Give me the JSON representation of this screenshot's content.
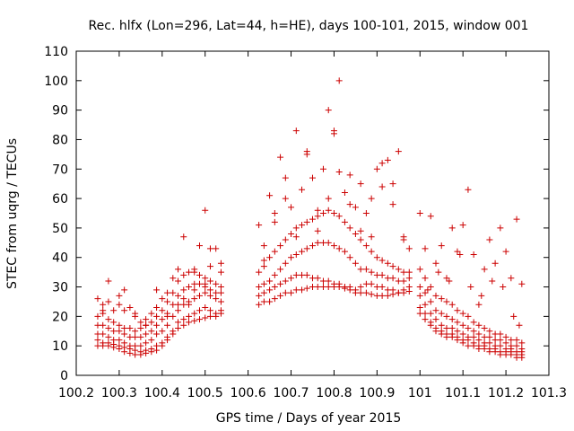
{
  "chart_data": {
    "type": "scatter",
    "title": "Rec. hlfx (Lon=296, Lat=44, h=HE), days 100-101, 2015, window 001",
    "xlabel": "GPS time / Days of year 2015",
    "ylabel": "STEC from uqrg / TECUs",
    "xlim": [
      100.2,
      101.3
    ],
    "ylim": [
      0,
      110
    ],
    "xticks": [
      "100.2",
      "100.3",
      "100.4",
      "100.5",
      "100.6",
      "100.7",
      "100.8",
      "100.9",
      "101",
      "101.1",
      "101.2",
      "101.3"
    ],
    "yticks": [
      "0",
      "10",
      "20",
      "30",
      "40",
      "50",
      "60",
      "70",
      "80",
      "90",
      "100",
      "110"
    ],
    "marker": "plus",
    "color": "#cc0000",
    "grid": false,
    "legend": "none",
    "series": [
      {
        "x": [
          100.25,
          100.262,
          100.275,
          100.287,
          100.3,
          100.312,
          100.325,
          100.337,
          100.35,
          100.362,
          100.375,
          100.387,
          100.4,
          100.412,
          100.425,
          100.437,
          100.45,
          100.462,
          100.475,
          100.487,
          100.5,
          100.512,
          100.525,
          100.537
        ],
        "y": [
          10,
          10,
          10,
          9.5,
          9,
          8,
          7.5,
          7,
          7,
          7.5,
          8,
          8.5,
          10,
          12,
          14,
          16,
          17,
          18,
          18.5,
          19,
          19.5,
          20,
          20,
          21
        ]
      },
      {
        "x": [
          100.25,
          100.262,
          100.275,
          100.287,
          100.3,
          100.312,
          100.325,
          100.337,
          100.35,
          100.362,
          100.375,
          100.387,
          100.4,
          100.412,
          100.425,
          100.437,
          100.45,
          100.462,
          100.475,
          100.487,
          100.5,
          100.512,
          100.525,
          100.537
        ],
        "y": [
          12,
          11,
          11,
          10.5,
          10,
          9.5,
          9,
          8.5,
          8,
          8.5,
          9,
          10,
          11,
          13,
          15,
          18,
          19,
          20,
          21,
          22,
          23,
          22,
          21,
          22
        ]
      },
      {
        "x": [
          100.25,
          100.262,
          100.275,
          100.287,
          100.3,
          100.312,
          100.325,
          100.337,
          100.35,
          100.362,
          100.375,
          100.387,
          100.4,
          100.412,
          100.425,
          100.437,
          100.45,
          100.462,
          100.475,
          100.487,
          100.5,
          100.512,
          100.525,
          100.537
        ],
        "y": [
          14,
          14,
          13,
          12,
          12,
          11,
          10,
          10,
          10,
          11,
          12,
          14,
          15,
          17,
          20,
          22,
          24,
          25,
          26,
          27,
          28,
          27,
          26,
          25
        ]
      },
      {
        "x": [
          100.25,
          100.262,
          100.275,
          100.287,
          100.3,
          100.312,
          100.325,
          100.337,
          100.35,
          100.362,
          100.375,
          100.387,
          100.4,
          100.412,
          100.425,
          100.437,
          100.45,
          100.462,
          100.475,
          100.487,
          100.5,
          100.512,
          100.525,
          100.537
        ],
        "y": [
          17,
          17,
          16,
          15,
          15,
          14,
          13,
          13,
          13,
          14,
          15,
          17,
          19,
          21,
          24,
          27,
          29,
          30,
          31,
          31,
          30,
          29,
          28,
          28
        ]
      },
      {
        "x": [
          100.25,
          100.262,
          100.275,
          100.287,
          100.3,
          100.312,
          100.325,
          100.337,
          100.35,
          100.362,
          100.375,
          100.387,
          100.4,
          100.412,
          100.425,
          100.437,
          100.45,
          100.462,
          100.475,
          100.487,
          100.5,
          100.512,
          100.525,
          100.537
        ],
        "y": [
          20,
          21,
          19,
          18,
          17,
          16,
          16,
          15,
          16,
          17,
          18,
          20,
          22,
          25,
          28,
          32,
          34,
          35,
          35,
          34,
          33,
          32,
          31,
          30
        ]
      },
      {
        "x": [
          100.25,
          100.262,
          100.275,
          100.287,
          100.3,
          100.312,
          100.325,
          100.337,
          100.35,
          100.362,
          100.375,
          100.387,
          100.4,
          100.412,
          100.425,
          100.437,
          100.45,
          100.462,
          100.475,
          100.487,
          100.5,
          100.512,
          100.525,
          100.537
        ],
        "y": [
          26,
          24,
          25,
          22,
          27,
          29,
          23,
          20,
          18,
          19,
          21,
          29,
          26,
          28,
          33,
          36,
          26,
          24,
          29,
          44,
          56,
          43,
          43,
          38
        ]
      },
      {
        "x": [
          100.262,
          100.275,
          100.3,
          100.312,
          100.337,
          100.362,
          100.387,
          100.412,
          100.437,
          100.45,
          100.475,
          100.5,
          100.512,
          100.537
        ],
        "y": [
          22,
          32,
          24,
          22,
          21,
          17,
          23,
          20,
          24,
          47,
          36,
          31,
          37,
          35
        ]
      },
      {
        "x": [
          100.625,
          100.637,
          100.65,
          100.662,
          100.675,
          100.687,
          100.7,
          100.712,
          100.725,
          100.737,
          100.75,
          100.762,
          100.775,
          100.787,
          100.8,
          100.812,
          100.825,
          100.837,
          100.85,
          100.862,
          100.875,
          100.887,
          100.9,
          100.912,
          100.925,
          100.937,
          100.95,
          100.962,
          100.975
        ],
        "y": [
          24,
          25,
          25,
          26,
          27,
          28,
          28,
          29,
          29,
          29.5,
          30,
          30,
          30,
          30,
          30,
          30,
          29.5,
          29,
          28,
          28,
          28,
          27.5,
          27,
          27,
          27,
          27.5,
          28,
          28,
          28.5
        ]
      },
      {
        "x": [
          100.625,
          100.637,
          100.65,
          100.662,
          100.675,
          100.687,
          100.7,
          100.712,
          100.725,
          100.737,
          100.75,
          100.762,
          100.775,
          100.787,
          100.8,
          100.812,
          100.825,
          100.837,
          100.85,
          100.862,
          100.875,
          100.887,
          100.9,
          100.912,
          100.925,
          100.937,
          100.95,
          100.962,
          100.975
        ],
        "y": [
          27,
          28,
          29,
          30,
          31,
          32,
          33,
          34,
          34,
          34,
          33,
          33,
          32,
          32,
          31,
          31,
          30,
          30,
          29,
          30,
          31,
          31,
          30,
          30,
          29,
          29,
          28,
          29,
          30
        ]
      },
      {
        "x": [
          100.625,
          100.637,
          100.65,
          100.662,
          100.675,
          100.687,
          100.7,
          100.712,
          100.725,
          100.737,
          100.75,
          100.762,
          100.775,
          100.787,
          100.8,
          100.812,
          100.825,
          100.837,
          100.85,
          100.862,
          100.875,
          100.887,
          100.9,
          100.912,
          100.925,
          100.937,
          100.95,
          100.962,
          100.975
        ],
        "y": [
          30,
          31,
          32,
          34,
          36,
          38,
          40,
          41,
          42,
          43,
          44,
          45,
          45,
          45,
          44,
          43,
          42,
          40,
          38,
          36,
          36,
          35,
          34,
          34,
          33,
          33,
          32,
          32,
          33
        ]
      },
      {
        "x": [
          100.625,
          100.637,
          100.65,
          100.662,
          100.675,
          100.687,
          100.7,
          100.712,
          100.725,
          100.737,
          100.75,
          100.762,
          100.775,
          100.787,
          100.8,
          100.812,
          100.825,
          100.837,
          100.85,
          100.862,
          100.875,
          100.887,
          100.9,
          100.912,
          100.925,
          100.937,
          100.95,
          100.962,
          100.975
        ],
        "y": [
          35,
          37,
          40,
          42,
          44,
          46,
          48,
          50,
          51,
          52,
          53,
          54,
          55,
          56,
          55,
          54,
          52,
          50,
          48,
          46,
          44,
          42,
          40,
          39,
          38,
          37,
          36,
          35,
          35
        ]
      },
      {
        "x": [
          100.625,
          100.637,
          100.65,
          100.662,
          100.675,
          100.687,
          100.7,
          100.712,
          100.725,
          100.737,
          100.75,
          100.762,
          100.775,
          100.787,
          100.8,
          100.812,
          100.825,
          100.837,
          100.85,
          100.862,
          100.875,
          100.887,
          100.9,
          100.912,
          100.925,
          100.937,
          100.95,
          100.962,
          100.975
        ],
        "y": [
          51,
          44,
          61,
          52,
          74,
          67,
          57,
          83,
          63,
          75,
          67,
          56,
          70,
          90,
          83,
          69,
          62,
          68,
          57,
          65,
          55,
          60,
          70,
          72,
          73,
          65,
          76,
          47,
          43
        ]
      },
      {
        "x": [
          100.637,
          100.662,
          100.687,
          100.712,
          100.737,
          100.762,
          100.787,
          100.8,
          100.812,
          100.837,
          100.862,
          100.887,
          100.912,
          100.937,
          100.962
        ],
        "y": [
          39,
          55,
          60,
          47,
          76,
          49,
          60,
          82,
          100,
          58,
          49,
          47,
          64,
          58,
          46
        ]
      },
      {
        "x": [
          101.0,
          101.012,
          101.025,
          101.037,
          101.05,
          101.062,
          101.075,
          101.087,
          101.1,
          101.112,
          101.125,
          101.137,
          101.15,
          101.162,
          101.175,
          101.187,
          101.2,
          101.212,
          101.225,
          101.237
        ],
        "y": [
          21,
          19,
          17,
          15,
          14,
          13,
          13,
          12,
          11,
          10,
          10,
          9,
          9,
          8,
          8,
          7,
          7,
          7,
          6,
          6
        ]
      },
      {
        "x": [
          101.0,
          101.012,
          101.025,
          101.037,
          101.05,
          101.062,
          101.075,
          101.087,
          101.1,
          101.112,
          101.125,
          101.137,
          101.15,
          101.162,
          101.175,
          101.187,
          101.2,
          101.212,
          101.225,
          101.237
        ],
        "y": [
          23,
          21,
          18,
          16,
          15,
          14,
          14,
          13,
          12,
          12,
          11,
          10,
          10,
          9,
          9,
          8,
          8,
          8,
          7,
          7
        ]
      },
      {
        "x": [
          101.0,
          101.012,
          101.025,
          101.037,
          101.05,
          101.062,
          101.075,
          101.087,
          101.1,
          101.112,
          101.125,
          101.137,
          101.15,
          101.162,
          101.175,
          101.187,
          101.2,
          101.212,
          101.225,
          101.237
        ],
        "y": [
          27,
          24,
          21,
          19,
          17,
          16,
          16,
          15,
          14,
          13,
          13,
          12,
          11,
          11,
          10,
          10,
          9,
          9,
          8,
          8
        ]
      },
      {
        "x": [
          101.0,
          101.012,
          101.025,
          101.037,
          101.05,
          101.062,
          101.075,
          101.087,
          101.1,
          101.112,
          101.125,
          101.137,
          101.15,
          101.162,
          101.175,
          101.187,
          101.2,
          101.212,
          101.225,
          101.237
        ],
        "y": [
          30,
          28,
          25,
          22,
          21,
          20,
          19,
          18,
          17,
          16,
          15,
          14,
          13,
          13,
          12,
          12,
          11,
          10,
          10,
          9
        ]
      },
      {
        "x": [
          101.0,
          101.012,
          101.025,
          101.037,
          101.05,
          101.062,
          101.075,
          101.087,
          101.1,
          101.112,
          101.125,
          101.137,
          101.15,
          101.162,
          101.175,
          101.187,
          101.2,
          101.212,
          101.225,
          101.237
        ],
        "y": [
          36,
          33,
          30,
          27,
          26,
          25,
          24,
          22,
          21,
          20,
          18,
          17,
          16,
          15,
          14,
          14,
          13,
          12,
          12,
          11
        ]
      },
      {
        "x": [
          101.0,
          101.012,
          101.025,
          101.037,
          101.05,
          101.062,
          101.075,
          101.087,
          101.1,
          101.112,
          101.125,
          101.137,
          101.15,
          101.162,
          101.175,
          101.187,
          101.2,
          101.212,
          101.225,
          101.237
        ],
        "y": [
          55,
          43,
          54,
          38,
          44,
          33,
          50,
          42,
          51,
          63,
          41,
          24,
          36,
          46,
          38,
          50,
          42,
          33,
          53,
          31
        ]
      },
      {
        "x": [
          101.018,
          101.043,
          101.068,
          101.093,
          101.118,
          101.143,
          101.168,
          101.193,
          101.218,
          101.231
        ],
        "y": [
          29,
          35,
          32,
          41,
          30,
          27,
          32,
          30,
          20,
          17
        ]
      }
    ]
  }
}
